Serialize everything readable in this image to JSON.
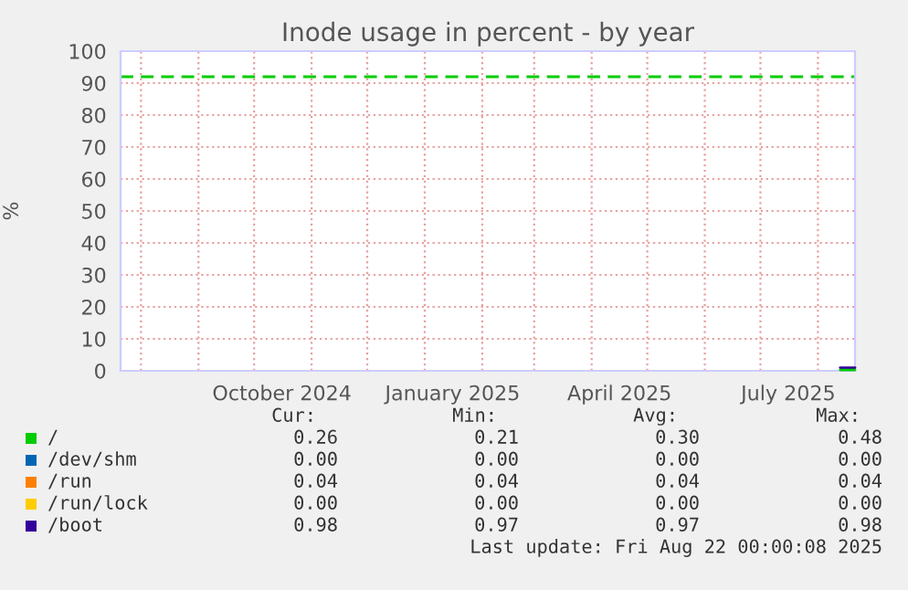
{
  "chart_data": {
    "type": "line",
    "title": "Inode usage in percent - by year",
    "ylabel": "%",
    "xlim": [
      "2024-07-21",
      "2025-08-21"
    ],
    "xticks": [
      {
        "value": "2024-08-01",
        "label": null
      },
      {
        "value": "2024-09-01",
        "label": null
      },
      {
        "value": "2024-10-01",
        "label": null
      },
      {
        "value": "2024-10-16",
        "label": "October 2024"
      },
      {
        "value": "2024-11-01",
        "label": null
      },
      {
        "value": "2024-12-01",
        "label": null
      },
      {
        "value": "2025-01-01",
        "label": null
      },
      {
        "value": "2025-01-16",
        "label": "January 2025"
      },
      {
        "value": "2025-02-01",
        "label": null
      },
      {
        "value": "2025-03-01",
        "label": null
      },
      {
        "value": "2025-04-01",
        "label": null
      },
      {
        "value": "2025-04-16",
        "label": "April 2025"
      },
      {
        "value": "2025-05-01",
        "label": null
      },
      {
        "value": "2025-06-01",
        "label": null
      },
      {
        "value": "2025-07-01",
        "label": null
      },
      {
        "value": "2025-07-16",
        "label": "July 2025"
      },
      {
        "value": "2025-08-01",
        "label": null
      }
    ],
    "ylim": [
      0,
      100
    ],
    "yticks": [
      0,
      10,
      20,
      30,
      40,
      50,
      60,
      70,
      80,
      90,
      100
    ],
    "grid": true,
    "legend": "bottom",
    "series": [
      {
        "name": "/",
        "color": "#00cc00",
        "x": [
          "2025-08-13",
          "2025-08-21"
        ],
        "values": [
          0.26,
          0.26
        ]
      },
      {
        "name": "/dev/shm",
        "color": "#0066b3"
      },
      {
        "name": "/run",
        "color": "#ff8000"
      },
      {
        "name": "/run/lock",
        "color": "#ffcc00"
      },
      {
        "name": "/boot",
        "color": "#330099",
        "x": [
          "2025-08-13",
          "2025-08-21"
        ],
        "values": [
          0.98,
          0.98
        ]
      }
    ],
    "ref_lines": [
      {
        "axis": "y",
        "value": 92,
        "label": null,
        "color": "#00cc00",
        "line_style": "dashed"
      }
    ],
    "annotations": [
      "Cur:",
      "Min:",
      "Avg:",
      "Max:",
      "0.26",
      "0.21",
      "0.30",
      "0.48",
      "0.00",
      "0.00",
      "0.00",
      "0.00",
      "0.04",
      "0.04",
      "0.04",
      "0.04",
      "0.00",
      "0.00",
      "0.00",
      "0.00",
      "0.98",
      "0.97",
      "0.97",
      "0.98",
      "Last update: Fri Aug 22 00:00:08 2025"
    ]
  }
}
